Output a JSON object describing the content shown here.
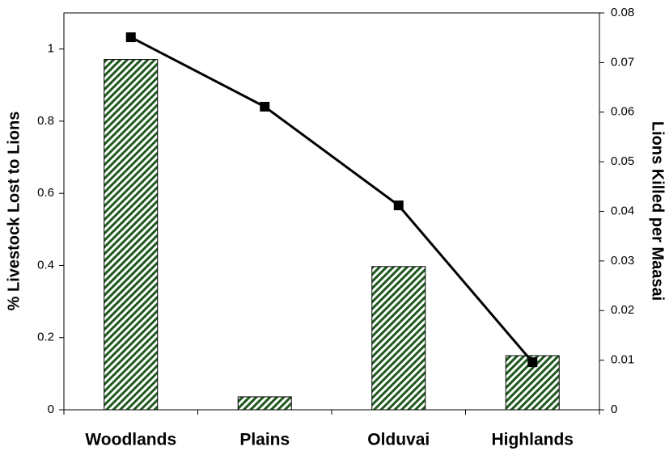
{
  "chart_data": {
    "type": "bar",
    "categories": [
      "Woodlands",
      "Plains",
      "Olduvai",
      "Highlands"
    ],
    "y_label": "% Livestock Lost to Lions",
    "y2_label": "Lions Killed per Maasai",
    "ylim": [
      0,
      1.1
    ],
    "yticks": [
      0,
      0.2,
      0.4,
      0.6,
      0.8,
      1
    ],
    "y2lim": [
      0,
      0.08
    ],
    "y2ticks": [
      0,
      0.01,
      0.02,
      0.03,
      0.04,
      0.05,
      0.06,
      0.07,
      0.08
    ],
    "series": [
      {
        "type": "bar",
        "color": "#1e5a1e",
        "values": [
          0.971,
          0.036,
          0.397,
          0.15
        ]
      },
      {
        "type": "line",
        "axis": "y2",
        "color": "#000000",
        "values": [
          0.0751,
          0.0611,
          0.0412,
          0.0096
        ]
      }
    ]
  }
}
